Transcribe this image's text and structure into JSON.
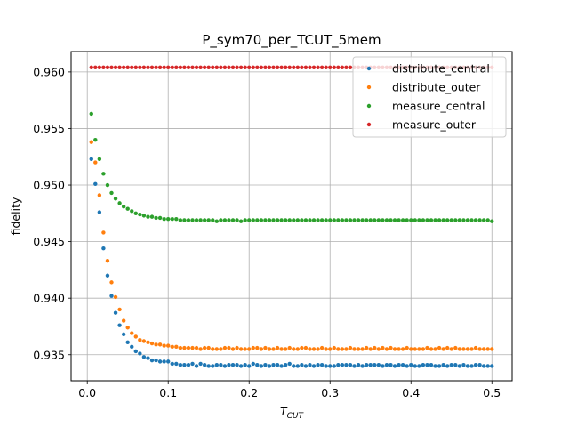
{
  "chart_data": {
    "type": "scatter",
    "title": "P_sym70_per_TCUT_5mem",
    "xlabel_main": "T",
    "xlabel_sub": "CUT",
    "ylabel": "fidelity",
    "xlim": [
      -0.02,
      0.525
    ],
    "ylim": [
      0.9327,
      0.9618
    ],
    "xticks": [
      0.0,
      0.1,
      0.2,
      0.3,
      0.4,
      0.5
    ],
    "xtick_labels": [
      "0.0",
      "0.1",
      "0.2",
      "0.3",
      "0.4",
      "0.5"
    ],
    "yticks": [
      0.935,
      0.94,
      0.945,
      0.95,
      0.955,
      0.96
    ],
    "ytick_labels": [
      "0.935",
      "0.940",
      "0.945",
      "0.950",
      "0.955",
      "0.960"
    ],
    "grid": true,
    "legend_position": "top-right",
    "x": [
      0.005,
      0.01,
      0.015,
      0.02,
      0.025,
      0.03,
      0.035,
      0.04,
      0.045,
      0.05,
      0.055,
      0.06,
      0.065,
      0.07,
      0.075,
      0.08,
      0.085,
      0.09,
      0.095,
      0.1,
      0.105,
      0.11,
      0.115,
      0.12,
      0.125,
      0.13,
      0.135,
      0.14,
      0.145,
      0.15,
      0.155,
      0.16,
      0.165,
      0.17,
      0.175,
      0.18,
      0.185,
      0.19,
      0.195,
      0.2,
      0.205,
      0.21,
      0.215,
      0.22,
      0.225,
      0.23,
      0.235,
      0.24,
      0.245,
      0.25,
      0.255,
      0.26,
      0.265,
      0.27,
      0.275,
      0.28,
      0.285,
      0.29,
      0.295,
      0.3,
      0.305,
      0.31,
      0.315,
      0.32,
      0.325,
      0.33,
      0.335,
      0.34,
      0.345,
      0.35,
      0.355,
      0.36,
      0.365,
      0.37,
      0.375,
      0.38,
      0.385,
      0.39,
      0.395,
      0.4,
      0.405,
      0.41,
      0.415,
      0.42,
      0.425,
      0.43,
      0.435,
      0.44,
      0.445,
      0.45,
      0.455,
      0.46,
      0.465,
      0.47,
      0.475,
      0.48,
      0.485,
      0.49,
      0.495,
      0.5
    ],
    "series": [
      {
        "name": "distribute_central",
        "color": "#1f77b4",
        "values": [
          0.9523,
          0.9501,
          0.9476,
          0.9444,
          0.942,
          0.9402,
          0.9387,
          0.9376,
          0.9368,
          0.9361,
          0.9357,
          0.9353,
          0.9351,
          0.9348,
          0.9347,
          0.9345,
          0.9345,
          0.9344,
          0.9344,
          0.9344,
          0.9342,
          0.9342,
          0.9341,
          0.9341,
          0.9341,
          0.9342,
          0.934,
          0.9342,
          0.9341,
          0.934,
          0.934,
          0.9341,
          0.9341,
          0.934,
          0.9341,
          0.9341,
          0.9341,
          0.934,
          0.9341,
          0.934,
          0.9342,
          0.9341,
          0.934,
          0.9341,
          0.934,
          0.9341,
          0.9341,
          0.934,
          0.9341,
          0.9342,
          0.934,
          0.934,
          0.9341,
          0.934,
          0.9341,
          0.934,
          0.9341,
          0.9341,
          0.934,
          0.934,
          0.934,
          0.9341,
          0.9341,
          0.9341,
          0.9341,
          0.934,
          0.9341,
          0.934,
          0.9341,
          0.9341,
          0.9341,
          0.9341,
          0.934,
          0.9341,
          0.9341,
          0.934,
          0.9341,
          0.9341,
          0.934,
          0.9341,
          0.934,
          0.934,
          0.9341,
          0.9341,
          0.9341,
          0.934,
          0.934,
          0.9341,
          0.934,
          0.9341,
          0.9341,
          0.934,
          0.9341,
          0.934,
          0.934,
          0.9341,
          0.9341,
          0.934,
          0.934,
          0.934
        ]
      },
      {
        "name": "distribute_outer",
        "color": "#ff7f0e",
        "values": [
          0.9538,
          0.952,
          0.9491,
          0.9458,
          0.9433,
          0.9414,
          0.9401,
          0.939,
          0.938,
          0.9374,
          0.9369,
          0.9366,
          0.9363,
          0.9362,
          0.9361,
          0.936,
          0.9359,
          0.9359,
          0.9358,
          0.9358,
          0.9357,
          0.9357,
          0.9356,
          0.9356,
          0.9356,
          0.9356,
          0.9356,
          0.9355,
          0.9356,
          0.9356,
          0.9355,
          0.9355,
          0.9355,
          0.9356,
          0.9356,
          0.9355,
          0.9356,
          0.9355,
          0.9355,
          0.9355,
          0.9356,
          0.9356,
          0.9355,
          0.9356,
          0.9355,
          0.9355,
          0.9356,
          0.9355,
          0.9355,
          0.9356,
          0.9355,
          0.9355,
          0.9356,
          0.9356,
          0.9355,
          0.9355,
          0.9355,
          0.9356,
          0.9355,
          0.9355,
          0.9356,
          0.9355,
          0.9355,
          0.9355,
          0.9356,
          0.9355,
          0.9355,
          0.9355,
          0.9356,
          0.9355,
          0.9356,
          0.9355,
          0.9356,
          0.9355,
          0.9356,
          0.9355,
          0.9355,
          0.9355,
          0.9356,
          0.9355,
          0.9355,
          0.9355,
          0.9355,
          0.9356,
          0.9355,
          0.9355,
          0.9356,
          0.9355,
          0.9356,
          0.9355,
          0.9356,
          0.9355,
          0.9355,
          0.9355,
          0.9355,
          0.9356,
          0.9355,
          0.9355,
          0.9355,
          0.9355
        ]
      },
      {
        "name": "measure_central",
        "color": "#2ca02c",
        "values": [
          0.9563,
          0.954,
          0.9523,
          0.951,
          0.95,
          0.9493,
          0.9488,
          0.9484,
          0.9481,
          0.9479,
          0.9477,
          0.9475,
          0.9474,
          0.9473,
          0.9472,
          0.9472,
          0.9471,
          0.9471,
          0.947,
          0.947,
          0.947,
          0.947,
          0.9469,
          0.9469,
          0.9469,
          0.9469,
          0.9469,
          0.9469,
          0.9469,
          0.9469,
          0.9469,
          0.9468,
          0.9469,
          0.9469,
          0.9469,
          0.9469,
          0.9469,
          0.9468,
          0.9469,
          0.9469,
          0.9469,
          0.9469,
          0.9469,
          0.9469,
          0.9469,
          0.9469,
          0.9469,
          0.9469,
          0.9469,
          0.9469,
          0.9469,
          0.9469,
          0.9469,
          0.9469,
          0.9469,
          0.9469,
          0.9469,
          0.9469,
          0.9469,
          0.9469,
          0.9469,
          0.9469,
          0.9469,
          0.9469,
          0.9469,
          0.9469,
          0.9469,
          0.9469,
          0.9469,
          0.9469,
          0.9469,
          0.9469,
          0.9469,
          0.9469,
          0.9469,
          0.9469,
          0.9469,
          0.9469,
          0.9469,
          0.9469,
          0.9469,
          0.9469,
          0.9469,
          0.9469,
          0.9469,
          0.9469,
          0.9469,
          0.9469,
          0.9469,
          0.9469,
          0.9469,
          0.9469,
          0.9469,
          0.9469,
          0.9469,
          0.9469,
          0.9469,
          0.9469,
          0.9469,
          0.9468
        ]
      },
      {
        "name": "measure_outer",
        "color": "#d62728",
        "values": [
          0.9604,
          0.9604,
          0.9604,
          0.9604,
          0.9604,
          0.9604,
          0.9604,
          0.9604,
          0.9604,
          0.9604,
          0.9604,
          0.9604,
          0.9604,
          0.9604,
          0.9604,
          0.9604,
          0.9604,
          0.9604,
          0.9604,
          0.9604,
          0.9604,
          0.9604,
          0.9604,
          0.9604,
          0.9604,
          0.9604,
          0.9604,
          0.9604,
          0.9604,
          0.9604,
          0.9604,
          0.9604,
          0.9604,
          0.9604,
          0.9604,
          0.9604,
          0.9604,
          0.9604,
          0.9604,
          0.9604,
          0.9604,
          0.9604,
          0.9604,
          0.9604,
          0.9604,
          0.9604,
          0.9604,
          0.9604,
          0.9604,
          0.9604,
          0.9604,
          0.9604,
          0.9604,
          0.9604,
          0.9604,
          0.9604,
          0.9604,
          0.9604,
          0.9604,
          0.9604,
          0.9604,
          0.9604,
          0.9604,
          0.9604,
          0.9604,
          0.9604,
          0.9604,
          0.9604,
          0.9604,
          0.9604,
          0.9604,
          0.9604,
          0.9604,
          0.9604,
          0.9604,
          0.9604,
          0.9604,
          0.9604,
          0.9604,
          0.9604,
          0.9604,
          0.9604,
          0.9604,
          0.9604,
          0.9604,
          0.9604,
          0.9604,
          0.9604,
          0.9604,
          0.9604,
          0.9604,
          0.9604,
          0.9604,
          0.9604,
          0.9604,
          0.9604,
          0.9604,
          0.9604,
          0.9604,
          0.9604
        ]
      }
    ]
  }
}
